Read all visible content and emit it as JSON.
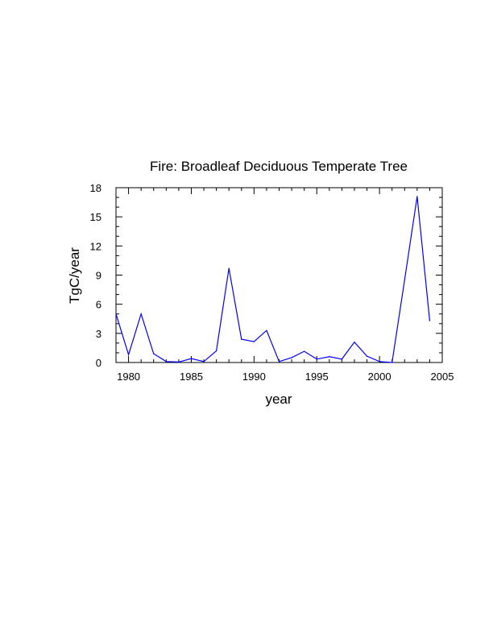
{
  "chart_data": {
    "type": "line",
    "title": "Fire: Broadleaf Deciduous Temperate Tree",
    "xlabel": "year",
    "ylabel": "TgC/year",
    "xlim": [
      1979,
      2005
    ],
    "ylim": [
      0,
      18
    ],
    "xticks": [
      1980,
      1985,
      1990,
      1995,
      2000,
      2005
    ],
    "yticks": [
      0,
      3,
      6,
      9,
      12,
      15,
      18
    ],
    "grid": false,
    "series": [
      {
        "color": "#0000ff",
        "x": [
          1979,
          1980,
          1981,
          1982,
          1983,
          1984,
          1985,
          1986,
          1987,
          1988,
          1989,
          1990,
          1991,
          1992,
          1993,
          1994,
          1995,
          1996,
          1997,
          1998,
          1999,
          2000,
          2001,
          2002,
          2003,
          2004
        ],
        "y": [
          5.0,
          0.8,
          5.0,
          0.9,
          0.1,
          0.05,
          0.4,
          0.1,
          1.2,
          9.7,
          2.4,
          2.15,
          3.3,
          0.1,
          0.5,
          1.15,
          0.35,
          0.6,
          0.35,
          2.1,
          0.65,
          0.1,
          0.0,
          8.5,
          17.1,
          4.3
        ]
      }
    ]
  }
}
